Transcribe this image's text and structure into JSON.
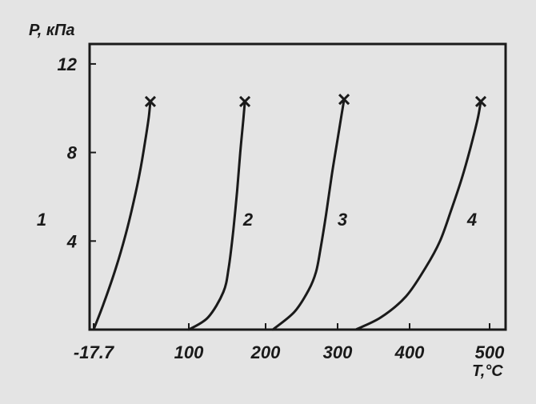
{
  "chart_data": {
    "type": "line",
    "title": "",
    "ylabel": "P, кПа",
    "xlabel": "T,°C",
    "x_ticks": [
      -17.7,
      100,
      200,
      300,
      400,
      500
    ],
    "x_tick_labels": [
      "-17.7",
      "100",
      "200",
      "300",
      "400",
      "500"
    ],
    "y_ticks": [
      4,
      8,
      12
    ],
    "y_tick_labels": [
      "4",
      "8",
      "12"
    ],
    "xlim": [
      -17.7,
      510
    ],
    "ylim": [
      0,
      12.9
    ],
    "grid": false,
    "legend": "none",
    "end_marker": "x",
    "series": [
      {
        "name": "1",
        "x": [
          -17.7,
          -5,
          10,
          22,
          32,
          40,
          46,
          50.5,
          52.5
        ],
        "y": [
          0,
          1.2,
          2.8,
          4.3,
          5.8,
          7.2,
          8.5,
          9.6,
          10.3
        ]
      },
      {
        "name": "2",
        "x": [
          100,
          125,
          145,
          152,
          158,
          163,
          167,
          171,
          173
        ],
        "y": [
          0,
          0.55,
          1.7,
          2.8,
          4.5,
          6.3,
          8.0,
          9.5,
          10.3
        ]
      },
      {
        "name": "3",
        "x": [
          210,
          240,
          260,
          270,
          276,
          284,
          292,
          300,
          306,
          309
        ],
        "y": [
          0,
          0.8,
          1.8,
          2.6,
          3.6,
          5.2,
          7.0,
          8.6,
          9.8,
          10.4
        ]
      },
      {
        "name": "4",
        "x": [
          325,
          360,
          395,
          420,
          438,
          452,
          465,
          476,
          485,
          489
        ],
        "y": [
          0,
          0.55,
          1.5,
          2.8,
          4.0,
          5.4,
          6.8,
          8.2,
          9.5,
          10.3
        ]
      }
    ],
    "colors": {
      "line": "#1a1a1a",
      "axis": "#1a1a1a",
      "background": "#e4e4e4"
    }
  }
}
